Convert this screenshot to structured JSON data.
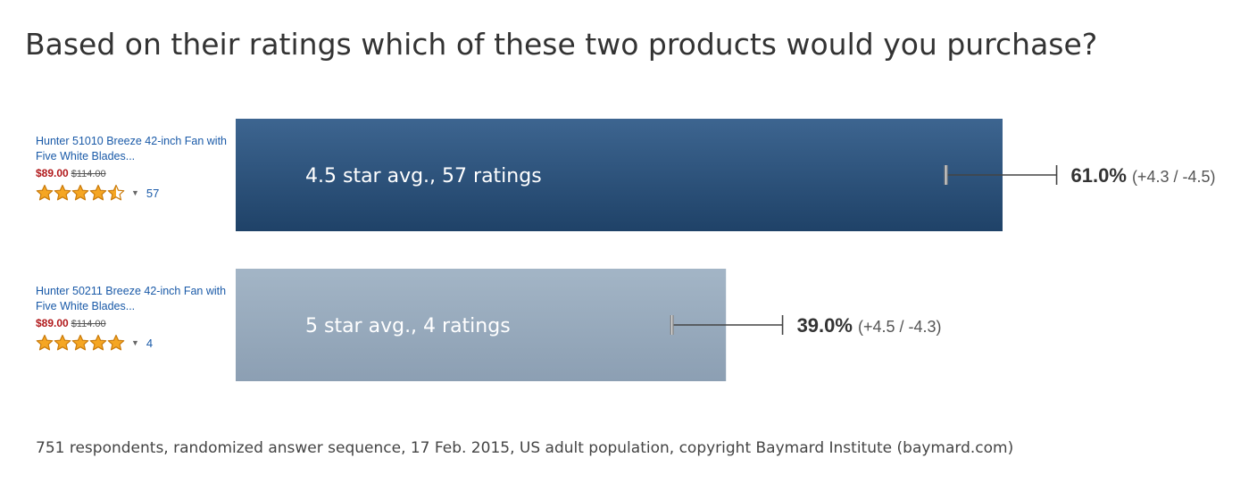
{
  "title": "Based on their ratings which of these two products would you purchase?",
  "products": [
    {
      "name": "Hunter 51010 Breeze 42-inch Fan with Five White Blades...",
      "price": "$89.00",
      "old_price": "$114.00",
      "stars": 4.5,
      "rating_count": "57"
    },
    {
      "name": "Hunter 50211 Breeze 42-inch Fan with Five White Blades...",
      "price": "$89.00",
      "old_price": "$114.00",
      "stars": 5,
      "rating_count": "4"
    }
  ],
  "colors": {
    "bar1_top": "#3d6590",
    "bar1_bottom": "#1f4268",
    "bar2_top": "#a3b5c6",
    "bar2_bottom": "#8c9fb3",
    "star_fill": "#f5a623",
    "star_stroke": "#c97a0a"
  },
  "chart_data": {
    "type": "bar",
    "orientation": "horizontal",
    "categories": [
      "4.5 star avg., 57 ratings",
      "5 star avg., 4 ratings"
    ],
    "values": [
      61.0,
      39.0
    ],
    "value_labels": [
      "61.0%",
      "39.0%"
    ],
    "error_labels": [
      "(+4.3 / -4.5)",
      "(+4.5 / -4.3)"
    ],
    "errors": [
      {
        "plus": 4.3,
        "minus": 4.5
      },
      {
        "plus": 4.5,
        "minus": 4.3
      }
    ],
    "xlim": [
      0,
      100
    ]
  },
  "footnote": "751 respondents, randomized answer sequence, 17 Feb. 2015, US adult population, copyright Baymard Institute (baymard.com)"
}
